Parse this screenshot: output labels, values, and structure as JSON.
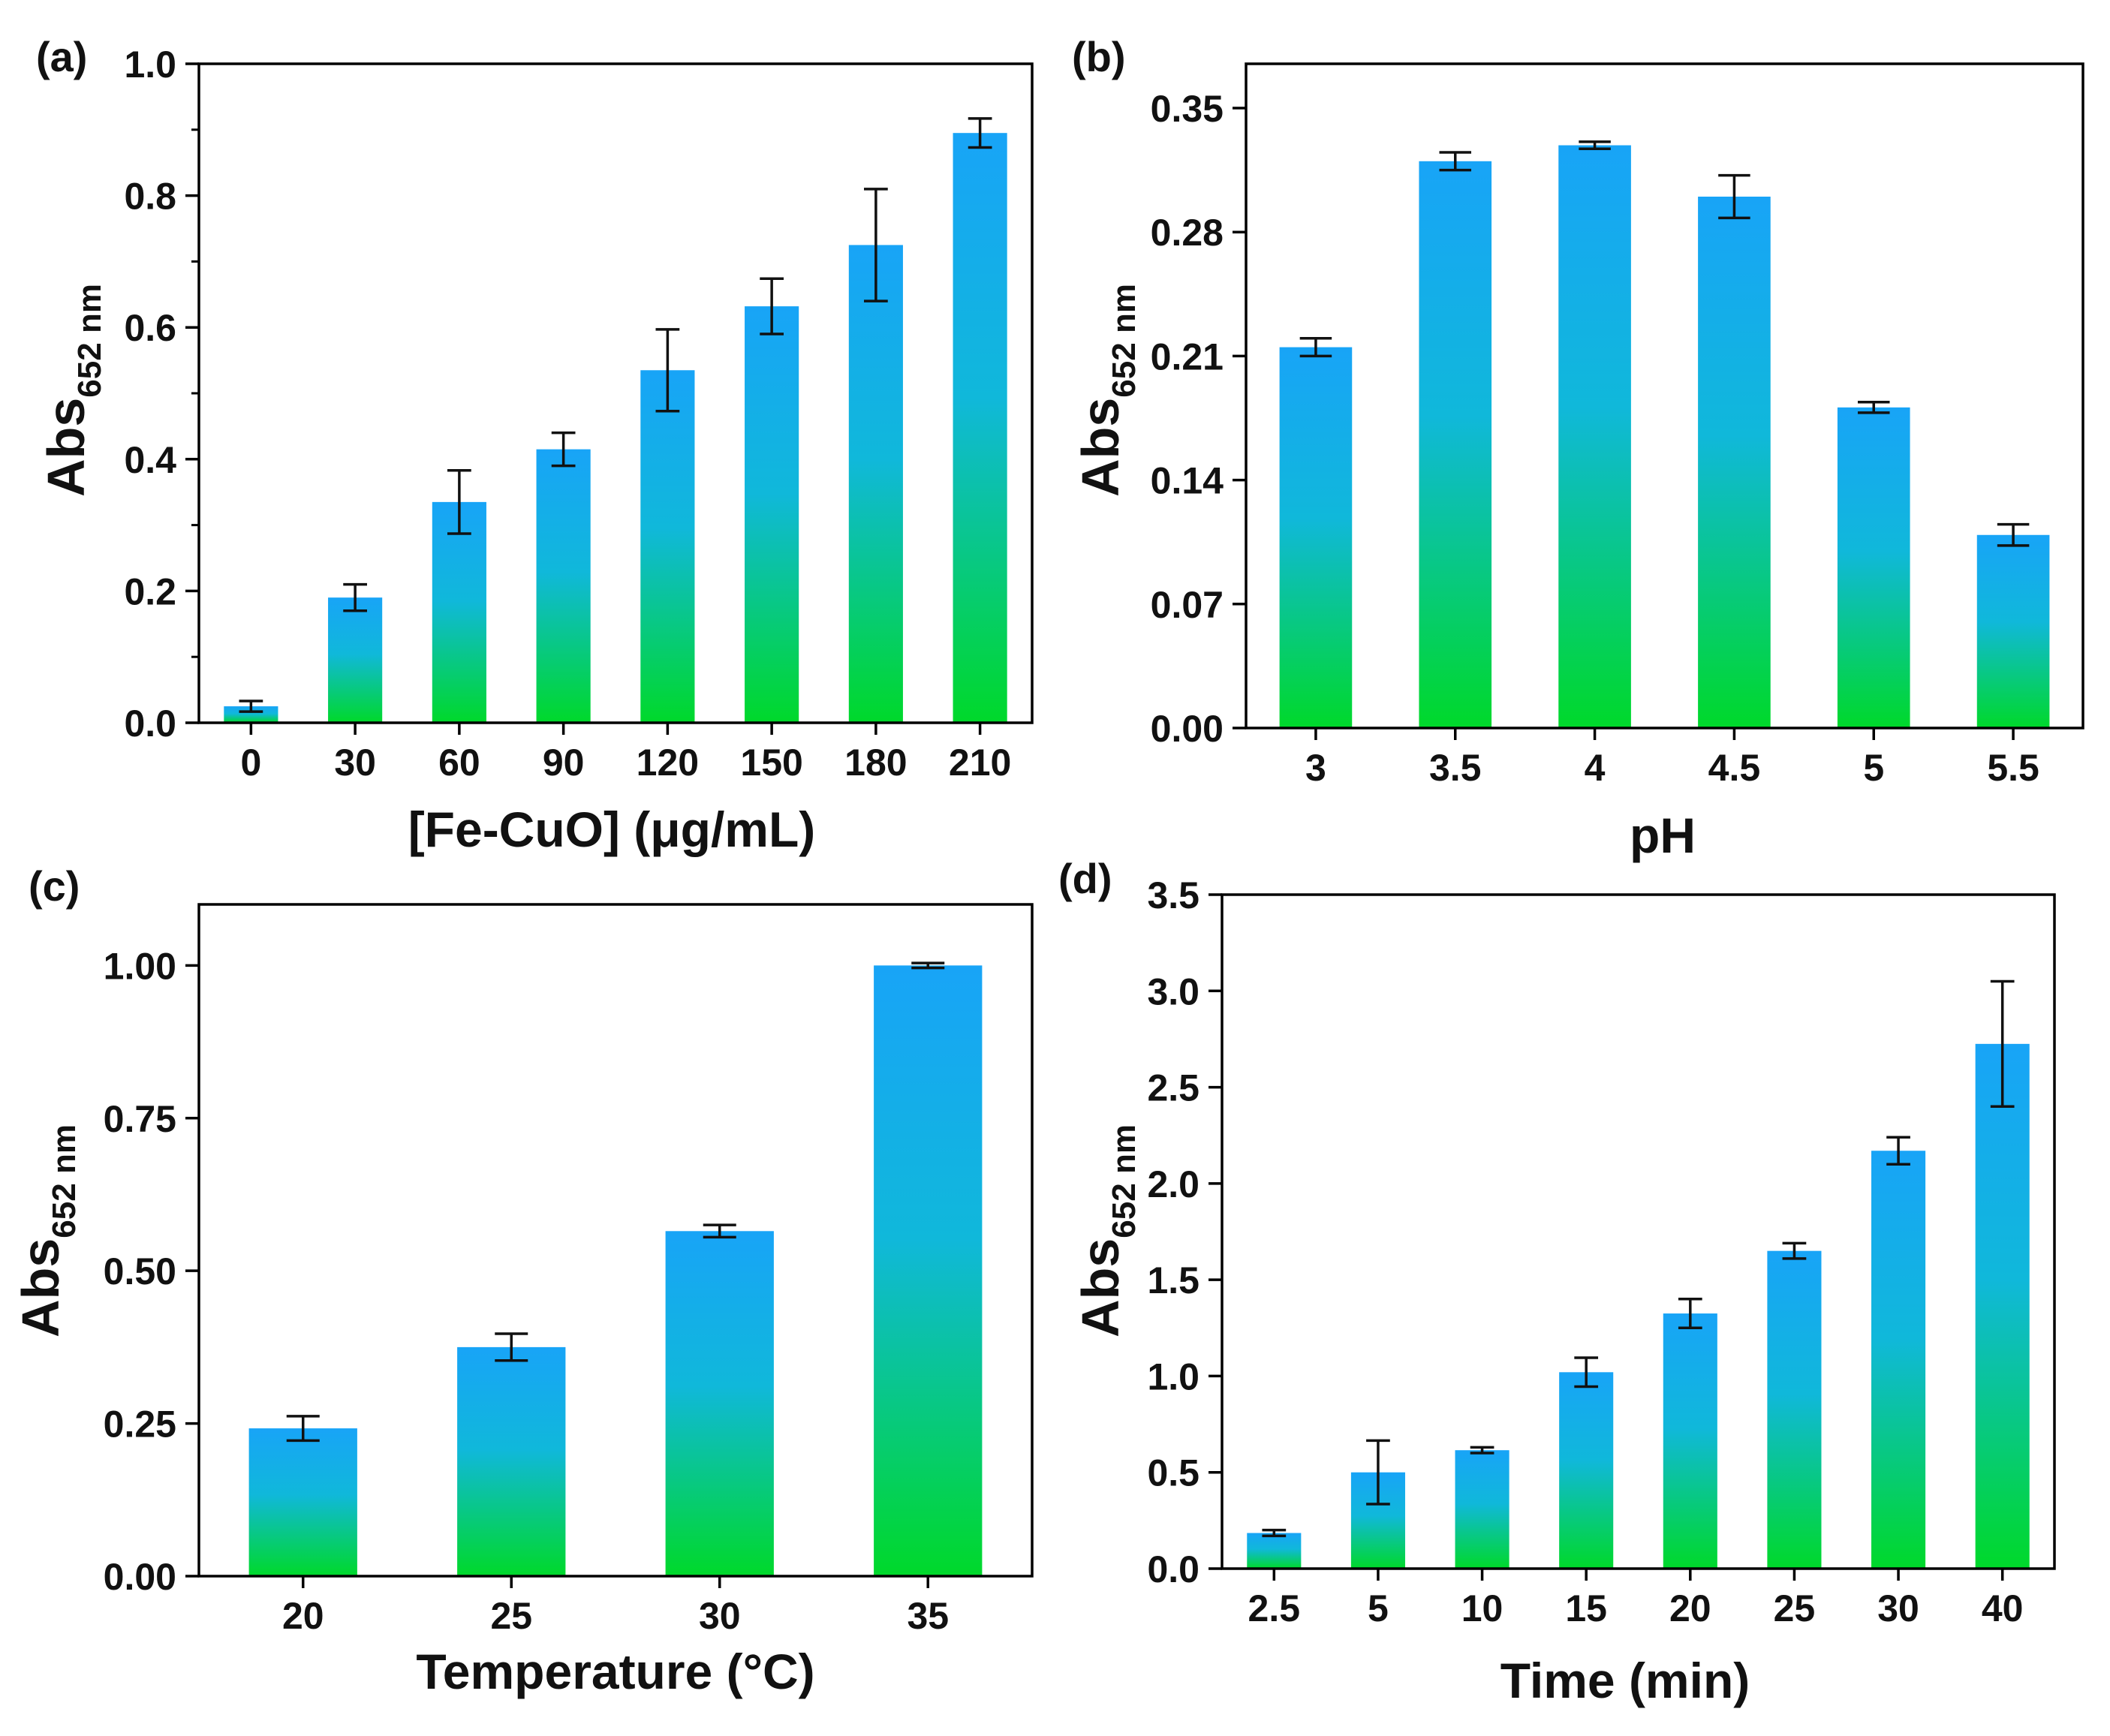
{
  "figure": {
    "panel_count": 4
  },
  "colors": {
    "bar_top": "#18a4f7",
    "bar_bottom": "#00d92a",
    "axis": "#000000",
    "error_bar": "#111111",
    "text": "#111111"
  },
  "chart_data": [
    {
      "id": "a",
      "panel_label": "(a)",
      "type": "bar",
      "xlabel": "[Fe-CuO] (μg/mL)",
      "ylabel_main": "Abs",
      "ylabel_sub": "652 nm",
      "categories": [
        "0",
        "30",
        "60",
        "90",
        "120",
        "150",
        "180",
        "210"
      ],
      "values": [
        0.025,
        0.19,
        0.335,
        0.415,
        0.535,
        0.632,
        0.725,
        0.895
      ],
      "errors": [
        0.008,
        0.02,
        0.048,
        0.025,
        0.062,
        0.042,
        0.085,
        0.022
      ],
      "ylim": [
        0,
        1.0
      ],
      "yticks": [
        "0.0",
        "0.2",
        "0.4",
        "0.6",
        "0.8",
        "1.0"
      ],
      "ytick_values": [
        0,
        0.2,
        0.4,
        0.6,
        0.8,
        1.0
      ],
      "minor_ticks": true
    },
    {
      "id": "b",
      "panel_label": "(b)",
      "type": "bar",
      "xlabel": "pH",
      "ylabel_main": "Abs",
      "ylabel_sub": "652 nm",
      "categories": [
        "3",
        "3.5",
        "4",
        "4.5",
        "5",
        "5.5"
      ],
      "values": [
        0.215,
        0.32,
        0.329,
        0.3,
        0.181,
        0.109
      ],
      "errors": [
        0.005,
        0.005,
        0.002,
        0.012,
        0.003,
        0.006
      ],
      "ylim": [
        0,
        0.375
      ],
      "yticks": [
        "0.00",
        "0.07",
        "0.14",
        "0.21",
        "0.28",
        "0.35"
      ],
      "ytick_values": [
        0,
        0.07,
        0.14,
        0.21,
        0.28,
        0.35
      ],
      "minor_ticks": false
    },
    {
      "id": "c",
      "panel_label": "(c)",
      "type": "bar",
      "xlabel": "Temperature (°C)",
      "ylabel_main": "Abs",
      "ylabel_sub": "652 nm",
      "categories": [
        "20",
        "25",
        "30",
        "35"
      ],
      "values": [
        0.242,
        0.375,
        0.565,
        1.0
      ],
      "errors": [
        0.02,
        0.022,
        0.01,
        0.004
      ],
      "ylim": [
        0,
        1.1
      ],
      "yticks": [
        "0.00",
        "0.25",
        "0.50",
        "0.75",
        "1.00"
      ],
      "ytick_values": [
        0,
        0.25,
        0.5,
        0.75,
        1.0
      ],
      "minor_ticks": false
    },
    {
      "id": "d",
      "panel_label": "(d)",
      "type": "bar",
      "xlabel": "Time (min)",
      "ylabel_main": "Abs",
      "ylabel_sub": "652 nm",
      "categories": [
        "2.5",
        "5",
        "10",
        "15",
        "20",
        "25",
        "30",
        "40"
      ],
      "values": [
        0.185,
        0.5,
        0.615,
        1.02,
        1.325,
        1.65,
        2.17,
        2.725
      ],
      "errors": [
        0.015,
        0.165,
        0.015,
        0.075,
        0.075,
        0.04,
        0.07,
        0.325
      ],
      "ylim": [
        0,
        3.5
      ],
      "yticks": [
        "0.0",
        "0.5",
        "1.0",
        "1.5",
        "2.0",
        "2.5",
        "3.0",
        "3.5"
      ],
      "ytick_values": [
        0,
        0.5,
        1.0,
        1.5,
        2.0,
        2.5,
        3.0,
        3.5
      ],
      "minor_ticks": false
    }
  ]
}
